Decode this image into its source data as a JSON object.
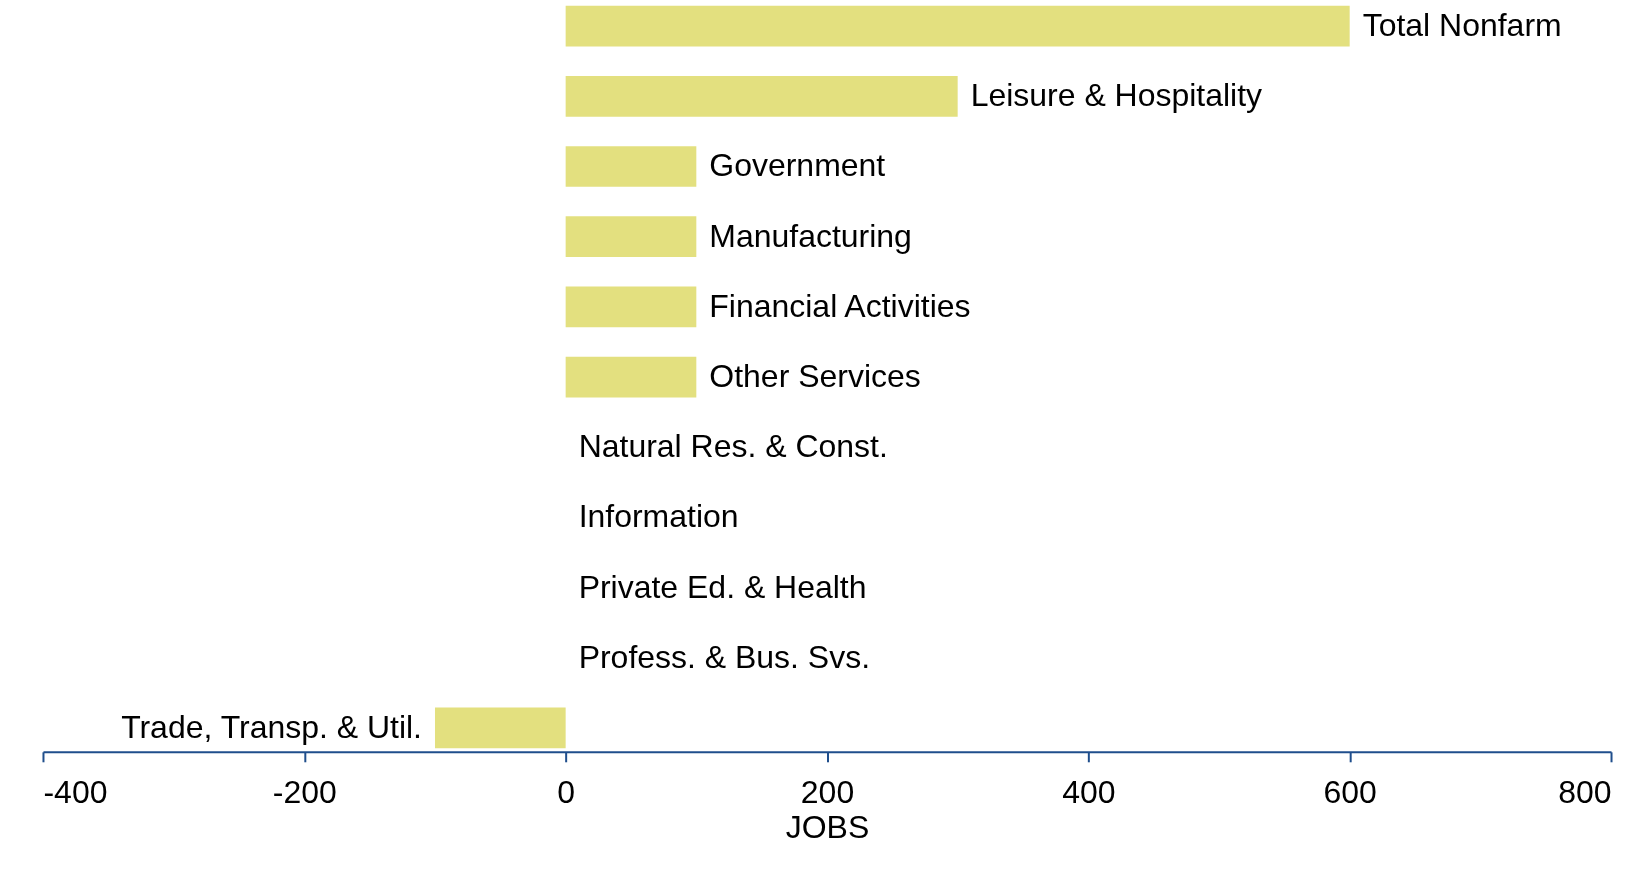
{
  "chart_data": {
    "type": "bar",
    "orientation": "horizontal",
    "xlabel": "JOBS",
    "categories": [
      "Total Nonfarm",
      "Leisure & Hospitality",
      "Government",
      "Manufacturing",
      "Financial Activities",
      "Other Services",
      "Natural Res. & Const.",
      "Information",
      "Private Ed. & Health",
      "Profess. & Bus. Svs.",
      "Trade, Transp. & Util."
    ],
    "values": [
      600,
      300,
      100,
      100,
      100,
      100,
      0,
      0,
      0,
      0,
      -100
    ],
    "color": "#e3e07f",
    "xlim": [
      -400,
      800
    ],
    "xticks": [
      -400,
      -200,
      0,
      200,
      400,
      600,
      800
    ],
    "grid": false,
    "tick_labels": "x"
  }
}
